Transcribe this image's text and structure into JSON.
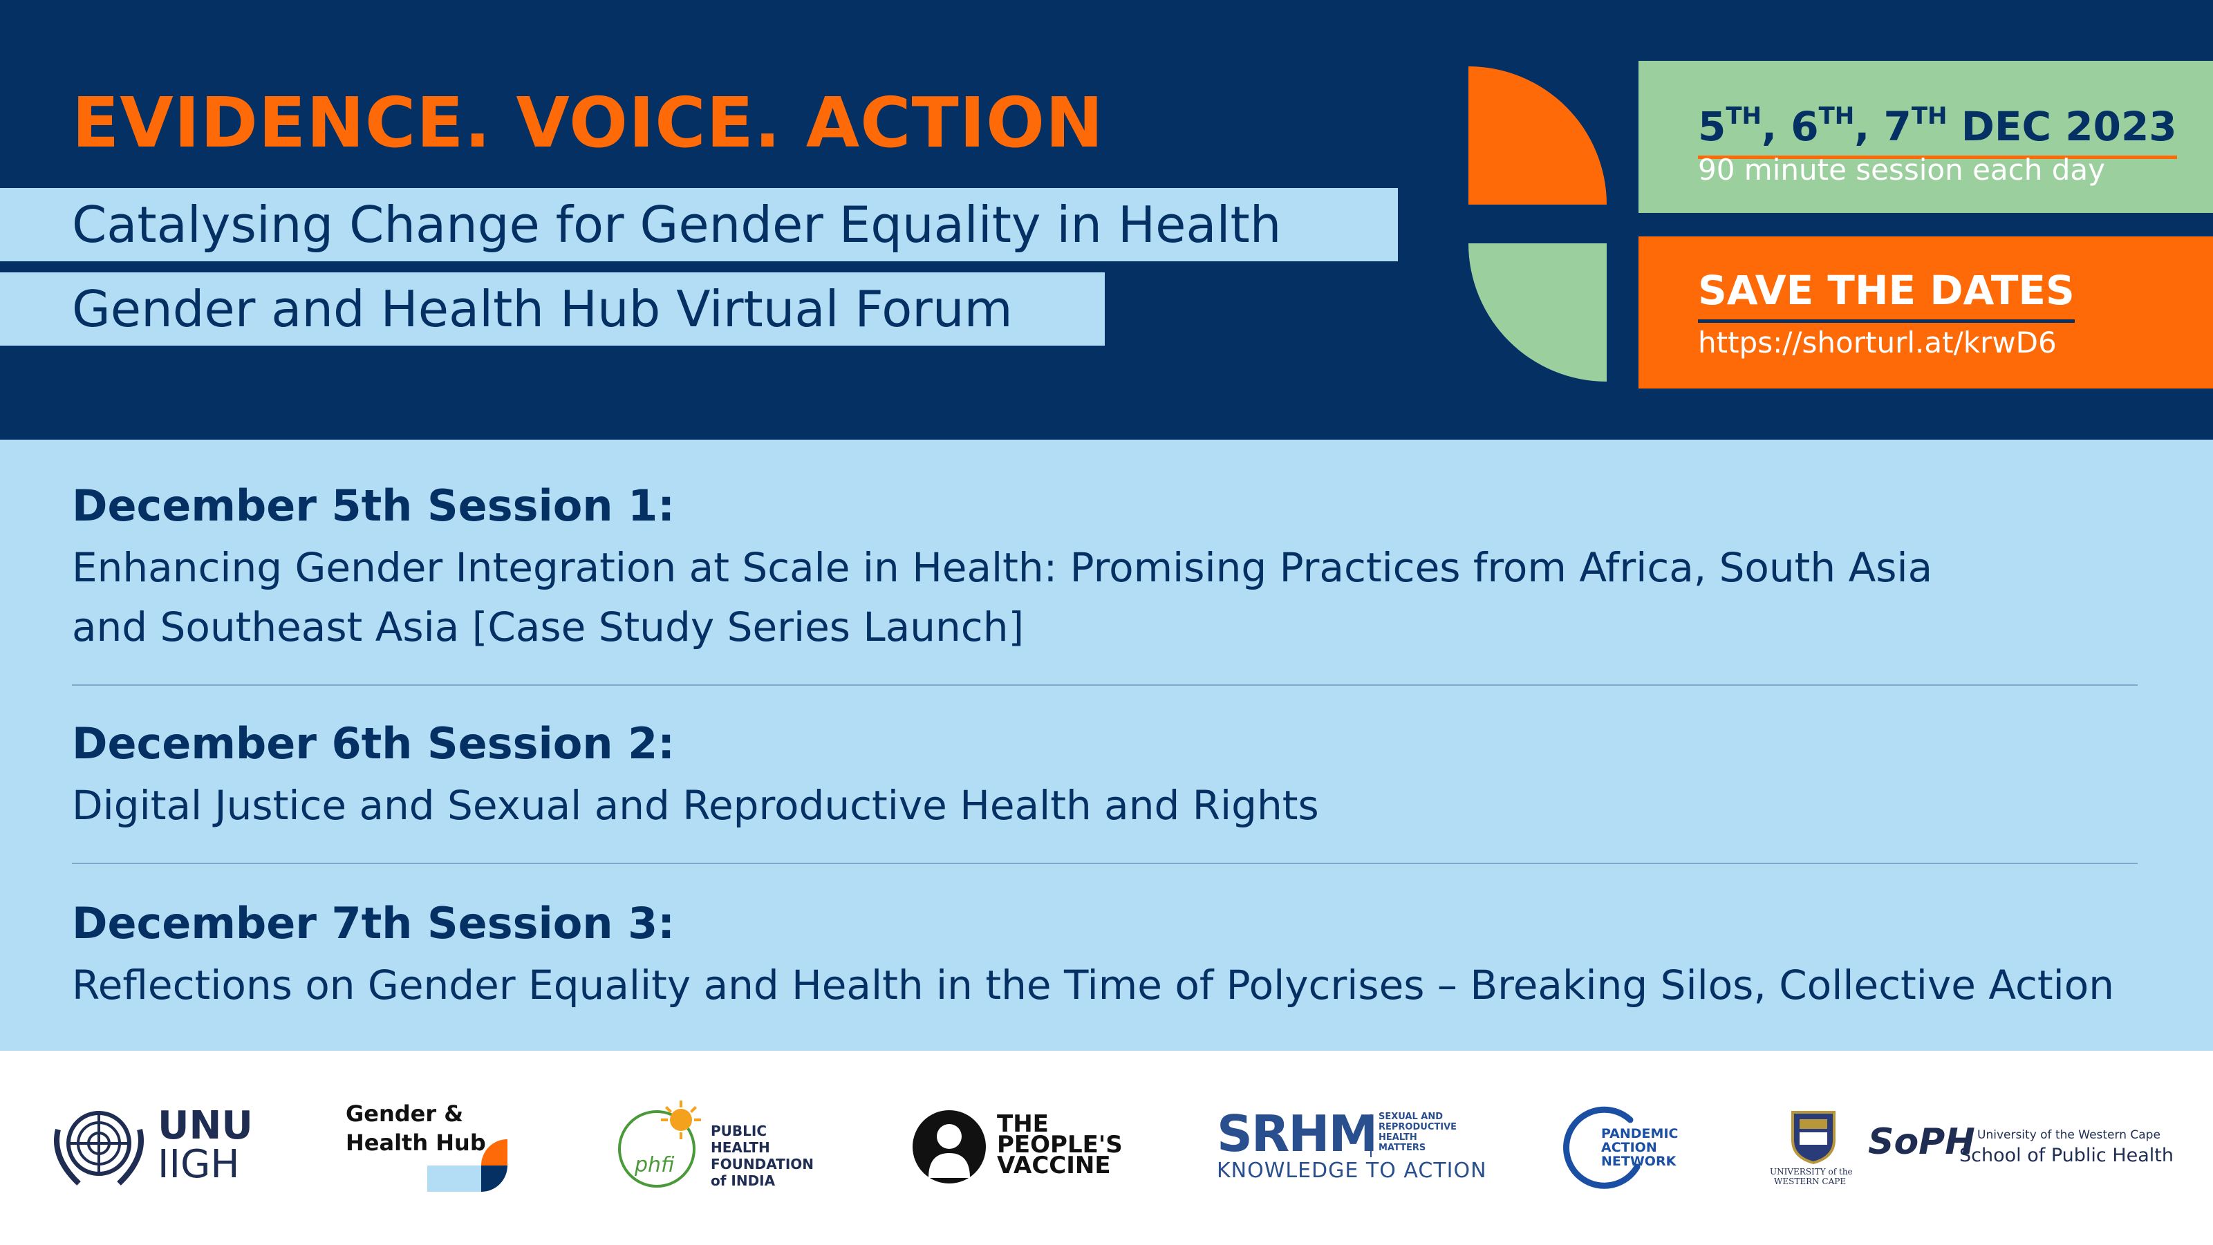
{
  "header": {
    "tagline": "EVIDENCE. VOICE. ACTION",
    "title_line1": "Catalysing Change for Gender Equality in Health",
    "title_line2": "Gender and Health Hub Virtual Forum",
    "date_box": {
      "d1": "5",
      "d1_sup": "TH",
      "d2": "6",
      "d2_sup": "TH",
      "d3": "7",
      "d3_sup": "TH",
      "month_year": " DEC 2023",
      "session_length": "90 minute session each day"
    },
    "save_box": {
      "label": "SAVE THE DATES",
      "url": "https://shorturl.at/krwD6"
    }
  },
  "sessions": [
    {
      "heading": "December 5th Session 1:",
      "line1": "Enhancing Gender Integration at Scale in Health: Promising Practices from Africa, South Asia",
      "line2": "and Southeast Asia [Case Study Series Launch]"
    },
    {
      "heading": "December 6th Session 2:",
      "line1": "Digital Justice and Sexual and Reproductive Health and Rights"
    },
    {
      "heading": "December 7th Session 3:",
      "line1": "Reflections on Gender Equality and Health in the Time of Polycrises – Breaking Silos, Collective Action"
    }
  ],
  "logos": {
    "unu_line1": "UNU",
    "unu_line2": "IIGH",
    "ghh_line1": "Gender &",
    "ghh_line2": "Health Hub",
    "phfi_mark": "phfi",
    "phfi_l1": "PUBLIC",
    "phfi_l2": "HEALTH",
    "phfi_l3": "FOUNDATION",
    "phfi_l4": "of INDIA",
    "tpv_l1": "THE",
    "tpv_l2": "PEOPLE'S",
    "tpv_l3": "VACCINE",
    "srhm_mark": "SRHM",
    "srhm_side1": "SEXUAL AND",
    "srhm_side2": "REPRODUCTIVE",
    "srhm_side3": "HEALTH",
    "srhm_side4": "MATTERS",
    "srhm_tag": "KNOWLEDGE TO ACTION",
    "pan_l1": "PANDEMIC",
    "pan_l2": "ACTION",
    "pan_l3": "NETWORK",
    "uwc_l1": "UNIVERSITY of the",
    "uwc_l2": "WESTERN CAPE",
    "soph_mark": "SoPH",
    "soph_l1": "University of the Western Cape",
    "soph_l2": "School of Public Health"
  },
  "colors": {
    "navy": "#043064",
    "orange": "#ff6a09",
    "light_blue": "#b3dcf5",
    "green": "#9bcf9d"
  }
}
